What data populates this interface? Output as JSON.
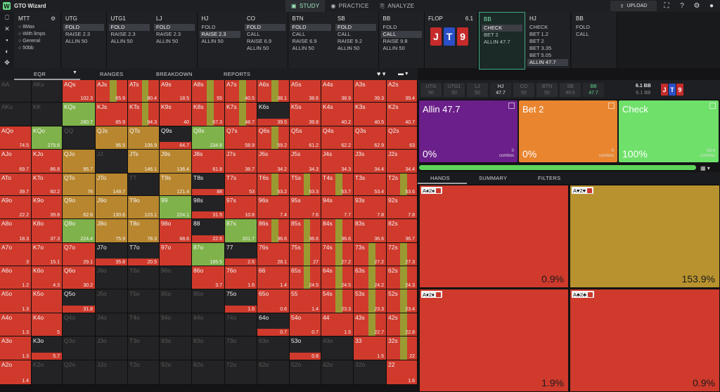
{
  "app": {
    "title": "GTO Wizard"
  },
  "nav": {
    "tabs": [
      {
        "label": "STUDY",
        "icon": "study-icon",
        "active": true
      },
      {
        "label": "PRACTICE",
        "icon": "gamepad-icon",
        "active": false
      },
      {
        "label": "ANALYZE",
        "icon": "analyze-icon",
        "active": false
      }
    ],
    "upload_label": "UPLOAD"
  },
  "strategy": {
    "mtt": {
      "title": "MTT",
      "items": [
        "8Max",
        "With limps",
        "General",
        "50bb"
      ]
    },
    "columns": [
      {
        "pos": "UTG",
        "opts": [
          {
            "t": "FOLD",
            "sel": true
          },
          {
            "t": "RAISE 2.3",
            "sel": false
          },
          {
            "t": "ALLIN 50",
            "sel": false
          }
        ]
      },
      {
        "pos": "UTG1",
        "opts": [
          {
            "t": "FOLD",
            "sel": true
          },
          {
            "t": "RAISE 2.3",
            "sel": false
          },
          {
            "t": "ALLIN 50",
            "sel": false
          }
        ]
      },
      {
        "pos": "LJ",
        "opts": [
          {
            "t": "FOLD",
            "sel": true
          },
          {
            "t": "RAISE 2.3",
            "sel": false
          },
          {
            "t": "ALLIN 50",
            "sel": false
          }
        ]
      },
      {
        "pos": "HJ",
        "opts": [
          {
            "t": "FOLD",
            "sel": false
          },
          {
            "t": "RAISE 2.3",
            "sel": true
          },
          {
            "t": "ALLIN 50",
            "sel": false
          }
        ]
      },
      {
        "pos": "CO",
        "opts": [
          {
            "t": "FOLD",
            "sel": true
          },
          {
            "t": "CALL",
            "sel": false
          },
          {
            "t": "RAISE 6.9",
            "sel": false
          },
          {
            "t": "ALLIN 50",
            "sel": false
          }
        ]
      },
      {
        "pos": "BTN",
        "opts": [
          {
            "t": "FOLD",
            "sel": true
          },
          {
            "t": "CALL",
            "sel": false
          },
          {
            "t": "RAISE 6.9",
            "sel": false
          },
          {
            "t": "ALLIN 50",
            "sel": false
          }
        ]
      },
      {
        "pos": "SB",
        "opts": [
          {
            "t": "FOLD",
            "sel": true
          },
          {
            "t": "CALL",
            "sel": false
          },
          {
            "t": "RAISE 9.2",
            "sel": false
          },
          {
            "t": "ALLIN 50",
            "sel": false
          }
        ]
      },
      {
        "pos": "BB",
        "opts": [
          {
            "t": "FOLD",
            "sel": false
          },
          {
            "t": "CALL",
            "sel": true
          },
          {
            "t": "RAISE 9.8",
            "sel": false
          },
          {
            "t": "ALLIN 50",
            "sel": false
          }
        ]
      }
    ],
    "flop": {
      "label": "FLOP",
      "pot": "6.1",
      "cards": [
        {
          "r": "J",
          "c": "#c62b2b"
        },
        {
          "r": "T",
          "c": "#2b4fc6"
        },
        {
          "r": "9",
          "c": "#c62b2b"
        }
      ]
    },
    "post": [
      {
        "pos": "BB",
        "active": true,
        "opts": [
          {
            "t": "CHECK",
            "sel": true
          },
          {
            "t": "BET 2",
            "sel": false
          },
          {
            "t": "ALLIN 47.7",
            "sel": false
          }
        ]
      },
      {
        "pos": "HJ",
        "active": false,
        "opts": [
          {
            "t": "CHECK",
            "sel": false
          },
          {
            "t": "BET 1.2",
            "sel": false
          },
          {
            "t": "BET 2",
            "sel": false
          },
          {
            "t": "BET 3.35",
            "sel": false
          },
          {
            "t": "BET 5.05",
            "sel": false
          },
          {
            "t": "ALLIN 47.7",
            "sel": true
          }
        ]
      },
      {
        "pos": "BB",
        "active": false,
        "opts": [
          {
            "t": "FOLD",
            "sel": false
          },
          {
            "t": "CALL",
            "sel": false
          }
        ]
      }
    ]
  },
  "left_toolbar": {
    "tabs": [
      "EQR",
      "RANGES",
      "BREAKDOWN",
      "REPORTS"
    ]
  },
  "grid": {
    "rows": [
      [
        [
          "AA",
          "",
          "e"
        ],
        [
          "AKs",
          "",
          "e"
        ],
        [
          "AQs",
          "102.3",
          "r"
        ],
        [
          "AJs",
          "65.9",
          "rg"
        ],
        [
          "ATs",
          "80.4",
          "rg"
        ],
        [
          "A9s",
          "18.5",
          "r"
        ],
        [
          "A8s",
          "55",
          "rg"
        ],
        [
          "A7s",
          "40.5",
          "rg"
        ],
        [
          "A6s",
          "38.1",
          "rg"
        ],
        [
          "A5s",
          "38.6",
          "r"
        ],
        [
          "A4s",
          "38.9",
          "r"
        ],
        [
          "A3s",
          "39.3",
          "r"
        ],
        [
          "A2s",
          "39.4",
          "r"
        ]
      ],
      [
        [
          "AKo",
          "",
          "e"
        ],
        [
          "KK",
          "",
          "e"
        ],
        [
          "KQs",
          "280.7",
          "g"
        ],
        [
          "KJs",
          "85.9",
          "r"
        ],
        [
          "KTs",
          "94.3",
          "rg"
        ],
        [
          "K9s",
          "40",
          "r"
        ],
        [
          "K8s",
          "67.3",
          "rg"
        ],
        [
          "K7s",
          "48.7",
          "rg"
        ],
        [
          "K6s",
          "39.5",
          "d"
        ],
        [
          "K5s",
          "39.8",
          "r"
        ],
        [
          "K4s",
          "40.2",
          "r"
        ],
        [
          "K3s",
          "40.5",
          "r"
        ],
        [
          "K2s",
          "40.7",
          "r"
        ]
      ],
      [
        [
          "AQo",
          "74.5",
          "r"
        ],
        [
          "KQo",
          "275.6",
          "g"
        ],
        [
          "QQ",
          "",
          "e"
        ],
        [
          "QJs",
          "96.5",
          "o"
        ],
        [
          "QTs",
          "106.9",
          "o"
        ],
        [
          "Q9s",
          "64.7",
          "d"
        ],
        [
          "Q8s",
          "234.8",
          "g"
        ],
        [
          "Q7s",
          "58.9",
          "r"
        ],
        [
          "Q6s",
          "59.2",
          "rg"
        ],
        [
          "Q5s",
          "61.2",
          "r"
        ],
        [
          "Q4s",
          "62.2",
          "r"
        ],
        [
          "Q3s",
          "62.9",
          "r"
        ],
        [
          "Q2s",
          "63",
          "r"
        ]
      ],
      [
        [
          "AJo",
          "69.7",
          "r"
        ],
        [
          "KJo",
          "86.8",
          "r"
        ],
        [
          "QJo",
          "95.7",
          "o"
        ],
        [
          "JJ",
          "",
          "e"
        ],
        [
          "JTs",
          "146.1",
          "o"
        ],
        [
          "J9s",
          "136.4",
          "o"
        ],
        [
          "J8s",
          "61.8",
          "r"
        ],
        [
          "J7s",
          "38.7",
          "r"
        ],
        [
          "J6s",
          "34.2",
          "r"
        ],
        [
          "J5s",
          "34.3",
          "r"
        ],
        [
          "J4s",
          "34.3",
          "r"
        ],
        [
          "J3s",
          "34.4",
          "r"
        ],
        [
          "J2s",
          "34.4",
          "r"
        ]
      ],
      [
        [
          "ATo",
          "39.7",
          "r"
        ],
        [
          "KTo",
          "60.2",
          "r"
        ],
        [
          "QTo",
          "76",
          "o"
        ],
        [
          "JTo",
          "149.7",
          "o"
        ],
        [
          "TT",
          "",
          "e"
        ],
        [
          "T9s",
          "121.4",
          "o"
        ],
        [
          "T8s",
          "88",
          "d"
        ],
        [
          "T7s",
          "53",
          "r"
        ],
        [
          "T6s",
          "53.2",
          "rg"
        ],
        [
          "T5s",
          "53.3",
          "rg"
        ],
        [
          "T4s",
          "53.7",
          "rg"
        ],
        [
          "T3s",
          "53.4",
          "r"
        ],
        [
          "T2s",
          "53.6",
          "rg"
        ]
      ],
      [
        [
          "A9o",
          "22.2",
          "r"
        ],
        [
          "K9o",
          "39.8",
          "r"
        ],
        [
          "Q9o",
          "62.6",
          "o"
        ],
        [
          "J9o",
          "130.6",
          "o"
        ],
        [
          "T9o",
          "123.1",
          "o"
        ],
        [
          "99",
          "224.1",
          "g"
        ],
        [
          "98s",
          "31.5",
          "d"
        ],
        [
          "97s",
          "10.8",
          "r"
        ],
        [
          "96s",
          "7.4",
          "r"
        ],
        [
          "95s",
          "7.6",
          "r"
        ],
        [
          "94s",
          "7.7",
          "r"
        ],
        [
          "93s",
          "7.8",
          "r"
        ],
        [
          "92s",
          "7.8",
          "r"
        ]
      ],
      [
        [
          "A8o",
          "18.3",
          "r"
        ],
        [
          "K8o",
          "37.3",
          "r"
        ],
        [
          "Q8o",
          "224.4",
          "g"
        ],
        [
          "J8o",
          "75.9",
          "o"
        ],
        [
          "T8o",
          "78.3",
          "o"
        ],
        [
          "98o",
          "68.6",
          "r"
        ],
        [
          "88",
          "22.6",
          "d"
        ],
        [
          "87s",
          "201.7",
          "g"
        ],
        [
          "86s",
          "36.6",
          "rg"
        ],
        [
          "85s",
          "36.6",
          "rg"
        ],
        [
          "84s",
          "36.6",
          "rg"
        ],
        [
          "83s",
          "36.6",
          "r"
        ],
        [
          "82s",
          "36.7",
          "r"
        ]
      ],
      [
        [
          "A7o",
          "3",
          "r"
        ],
        [
          "K7o",
          "15.1",
          "r"
        ],
        [
          "Q7o",
          "29.1",
          "r"
        ],
        [
          "J7o",
          "35.8",
          "d"
        ],
        [
          "T7o",
          "20.5",
          "d"
        ],
        [
          "97o",
          "",
          "r"
        ],
        [
          "87o",
          "185.5",
          "g"
        ],
        [
          "77",
          "2.6",
          "d"
        ],
        [
          "76s",
          "28.1",
          "r"
        ],
        [
          "75s",
          "27",
          "rg"
        ],
        [
          "74s",
          "27.2",
          "rg"
        ],
        [
          "73s",
          "27.2",
          "rg"
        ],
        [
          "72s",
          "27.3",
          "rg"
        ]
      ],
      [
        [
          "A6o",
          "1.2",
          "r"
        ],
        [
          "K6o",
          "4.3",
          "r"
        ],
        [
          "Q6o",
          "30.2",
          "r"
        ],
        [
          "J6o",
          "",
          "e"
        ],
        [
          "T6o",
          "",
          "e"
        ],
        [
          "96o",
          "",
          "e"
        ],
        [
          "86o",
          "3.7",
          "r"
        ],
        [
          "76o",
          "1.6",
          "r"
        ],
        [
          "66",
          "1.4",
          "r"
        ],
        [
          "65s",
          "24.5",
          "rg"
        ],
        [
          "64s",
          "24.5",
          "rg"
        ],
        [
          "63s",
          "24.2",
          "rg"
        ],
        [
          "62s",
          "24.3",
          "rg"
        ]
      ],
      [
        [
          "A5o",
          "1.3",
          "r"
        ],
        [
          "K5o",
          "",
          "r"
        ],
        [
          "Q5o",
          "31.8",
          "d"
        ],
        [
          "J5o",
          "",
          "e"
        ],
        [
          "T5o",
          "",
          "e"
        ],
        [
          "95o",
          "",
          "e"
        ],
        [
          "85o",
          "",
          "e"
        ],
        [
          "75o",
          "1.6",
          "d"
        ],
        [
          "65o",
          "0.6",
          "r"
        ],
        [
          "55",
          "1.4",
          "r"
        ],
        [
          "54s",
          "23.3",
          "rg"
        ],
        [
          "53s",
          "23.3",
          "rg"
        ],
        [
          "52s",
          "23.4",
          "rg"
        ]
      ],
      [
        [
          "A4o",
          "1.3",
          "r"
        ],
        [
          "K4o",
          "5",
          "r"
        ],
        [
          "Q4o",
          "",
          "e"
        ],
        [
          "J4o",
          "",
          "e"
        ],
        [
          "T4o",
          "",
          "e"
        ],
        [
          "94o",
          "",
          "e"
        ],
        [
          "84o",
          "",
          "e"
        ],
        [
          "74o",
          "",
          "e"
        ],
        [
          "64o",
          "0.7",
          "d"
        ],
        [
          "54o",
          "0.7",
          "r"
        ],
        [
          "44",
          "1.5",
          "r"
        ],
        [
          "43s",
          "22.7",
          "rg"
        ],
        [
          "42s",
          "22.8",
          "rg"
        ]
      ],
      [
        [
          "A3o",
          "1.3",
          "r"
        ],
        [
          "K3o",
          "5.7",
          "d"
        ],
        [
          "Q3o",
          "",
          "e"
        ],
        [
          "J3o",
          "",
          "e"
        ],
        [
          "T3o",
          "",
          "e"
        ],
        [
          "93o",
          "",
          "e"
        ],
        [
          "83o",
          "",
          "e"
        ],
        [
          "73o",
          "",
          "e"
        ],
        [
          "63o",
          "",
          "e"
        ],
        [
          "53o",
          "0.8",
          "d"
        ],
        [
          "43o",
          "",
          "e"
        ],
        [
          "33",
          "1.5",
          "r"
        ],
        [
          "32s",
          "22",
          "rg"
        ]
      ],
      [
        [
          "A2o",
          "1.4",
          "r"
        ],
        [
          "K2o",
          "",
          "e"
        ],
        [
          "Q2o",
          "",
          "e"
        ],
        [
          "J2o",
          "",
          "e"
        ],
        [
          "T2o",
          "",
          "e"
        ],
        [
          "92o",
          "",
          "e"
        ],
        [
          "82o",
          "",
          "e"
        ],
        [
          "72o",
          "",
          "e"
        ],
        [
          "62o",
          "",
          "e"
        ],
        [
          "52o",
          "",
          "e"
        ],
        [
          "42o",
          "",
          "e"
        ],
        [
          "32o",
          "",
          "e"
        ],
        [
          "22",
          "1.6",
          "r"
        ]
      ]
    ]
  },
  "right": {
    "positions": [
      {
        "p": "UTG",
        "s": "50",
        "st": "dim"
      },
      {
        "p": "UTG1",
        "s": "50",
        "st": "dim"
      },
      {
        "p": "LJ",
        "s": "50",
        "st": "dim"
      },
      {
        "p": "HJ",
        "s": "47.7",
        "st": "live"
      },
      {
        "p": "CO",
        "s": "50",
        "st": "dim"
      },
      {
        "p": "BTN",
        "s": "50",
        "st": "dim"
      },
      {
        "p": "SB",
        "s": "49.5",
        "st": "dim"
      },
      {
        "p": "BB",
        "s": "47.7",
        "st": "act"
      }
    ],
    "pot": {
      "line1": "6.1 BB",
      "line2": "6.1 BB"
    },
    "actions": [
      {
        "label": "Allin 47.7",
        "pct": "0%",
        "combos": "0",
        "combos_label": "combos",
        "color": "#6b1f8a"
      },
      {
        "label": "Bet 2",
        "pct": "0%",
        "combos": "0",
        "combos_label": "combos",
        "color": "#e9852f"
      },
      {
        "label": "Check",
        "pct": "100%",
        "combos": "63.4",
        "combos_label": "combos",
        "color": "#6fe06a"
      }
    ],
    "progress": 1.0,
    "tabs": [
      "HANDS",
      "SUMMARY",
      "FILTERS"
    ],
    "hands": [
      {
        "label": "A♠2♠",
        "value": "0.9%",
        "color": "#cf3a2c"
      },
      {
        "label": "A♥2♥",
        "value": "153.9%",
        "color": "#b8922e"
      },
      {
        "label": "A♦2♦",
        "value": "1.9%",
        "color": "#cf3a2c"
      },
      {
        "label": "A♣2♣",
        "value": "0.9%",
        "color": "#cf3a2c"
      }
    ]
  }
}
